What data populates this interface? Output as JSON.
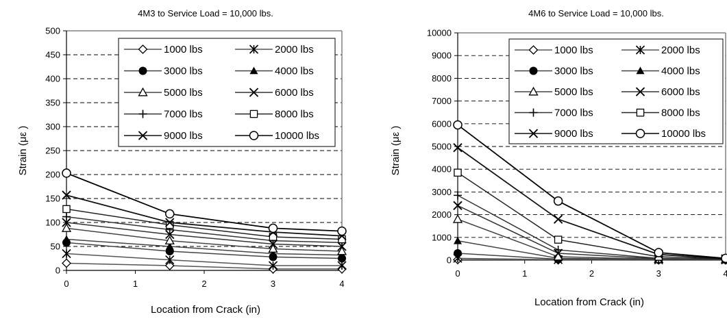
{
  "chart_data": [
    {
      "type": "line",
      "title": "4M3 to Service Load = 10,000 lbs.",
      "xlabel": "Location from Crack (in)",
      "ylabel": "Strain (με )",
      "x": [
        0,
        1.5,
        3,
        4
      ],
      "xlim": [
        0,
        4
      ],
      "xticks": [
        0,
        1,
        2,
        3,
        4
      ],
      "ylim": [
        0,
        500
      ],
      "yticks": [
        0,
        50,
        100,
        150,
        200,
        250,
        300,
        350,
        400,
        450,
        500
      ],
      "grid": "horizontal-dashed",
      "legend": "top-right",
      "series": [
        {
          "name": "1000 lbs",
          "marker": "diamond-open",
          "values": [
            15,
            10,
            3,
            3
          ]
        },
        {
          "name": "2000 lbs",
          "marker": "asterisk",
          "values": [
            35,
            22,
            10,
            10
          ]
        },
        {
          "name": "3000 lbs",
          "marker": "circle-filled",
          "values": [
            58,
            40,
            28,
            25
          ]
        },
        {
          "name": "4000 lbs",
          "marker": "triangle-filled",
          "values": [
            65,
            50,
            35,
            32
          ]
        },
        {
          "name": "5000 lbs",
          "marker": "triangle-open",
          "values": [
            88,
            62,
            45,
            40
          ]
        },
        {
          "name": "6000 lbs",
          "marker": "x",
          "values": [
            100,
            75,
            55,
            50
          ]
        },
        {
          "name": "7000 lbs",
          "marker": "plus",
          "values": [
            112,
            85,
            62,
            58
          ]
        },
        {
          "name": "8000 lbs",
          "marker": "square-open",
          "values": [
            128,
            95,
            70,
            65
          ]
        },
        {
          "name": "9000 lbs",
          "marker": "x",
          "values": [
            157,
            100,
            80,
            72
          ]
        },
        {
          "name": "10000 lbs",
          "marker": "circle-open",
          "values": [
            203,
            118,
            88,
            82
          ]
        }
      ]
    },
    {
      "type": "line",
      "title": "4M6 to Service Load = 10,000 lbs.",
      "xlabel": "Location from Crack (in)",
      "ylabel": "Strain (με )",
      "x": [
        0,
        1.5,
        3,
        4
      ],
      "xlim": [
        0,
        4
      ],
      "xticks": [
        0,
        1,
        2,
        3,
        4
      ],
      "ylim": [
        0,
        10000
      ],
      "yticks": [
        0,
        1000,
        2000,
        3000,
        4000,
        5000,
        6000,
        7000,
        8000,
        9000,
        10000
      ],
      "grid": "horizontal-dashed",
      "legend": "top-right",
      "series": [
        {
          "name": "1000 lbs",
          "marker": "diamond-open",
          "values": [
            20,
            10,
            5,
            5
          ]
        },
        {
          "name": "2000 lbs",
          "marker": "asterisk",
          "values": [
            80,
            20,
            10,
            10
          ]
        },
        {
          "name": "3000 lbs",
          "marker": "circle-filled",
          "values": [
            300,
            40,
            20,
            15
          ]
        },
        {
          "name": "4000 lbs",
          "marker": "triangle-filled",
          "values": [
            850,
            80,
            30,
            20
          ]
        },
        {
          "name": "5000 lbs",
          "marker": "triangle-open",
          "values": [
            1800,
            150,
            40,
            25
          ]
        },
        {
          "name": "6000 lbs",
          "marker": "x",
          "values": [
            2400,
            300,
            60,
            30
          ]
        },
        {
          "name": "7000 lbs",
          "marker": "plus",
          "values": [
            2850,
            450,
            80,
            35
          ]
        },
        {
          "name": "8000 lbs",
          "marker": "square-open",
          "values": [
            3850,
            900,
            150,
            50
          ]
        },
        {
          "name": "9000 lbs",
          "marker": "x",
          "values": [
            4950,
            1800,
            250,
            60
          ]
        },
        {
          "name": "10000 lbs",
          "marker": "circle-open",
          "values": [
            5950,
            2600,
            330,
            80
          ]
        }
      ]
    }
  ]
}
